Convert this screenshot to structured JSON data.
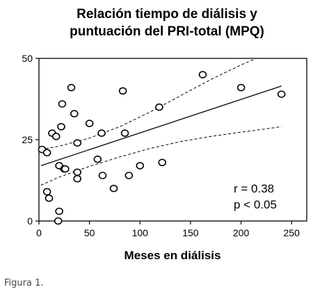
{
  "chart_data": {
    "type": "scatter",
    "title_lines": [
      "Relación tiempo de diálisis y",
      "puntuación del PRI-total (MPQ)"
    ],
    "xlabel": "Meses en diálisis",
    "ylabel": "",
    "xlim": [
      0,
      265
    ],
    "ylim": [
      0,
      50
    ],
    "x_ticks": [
      0,
      50,
      100,
      150,
      200,
      250
    ],
    "y_ticks": [
      0,
      25,
      50
    ],
    "grid": false,
    "points": [
      {
        "x": 3,
        "y": 22
      },
      {
        "x": 8,
        "y": 21
      },
      {
        "x": 8,
        "y": 9
      },
      {
        "x": 10,
        "y": 7
      },
      {
        "x": 13,
        "y": 27
      },
      {
        "x": 17,
        "y": 26
      },
      {
        "x": 20,
        "y": 17
      },
      {
        "x": 19,
        "y": 0
      },
      {
        "x": 20,
        "y": 3
      },
      {
        "x": 22,
        "y": 29
      },
      {
        "x": 23,
        "y": 36
      },
      {
        "x": 25,
        "y": 16
      },
      {
        "x": 26,
        "y": 16
      },
      {
        "x": 32,
        "y": 41
      },
      {
        "x": 35,
        "y": 33
      },
      {
        "x": 38,
        "y": 24
      },
      {
        "x": 38,
        "y": 15
      },
      {
        "x": 38,
        "y": 13
      },
      {
        "x": 50,
        "y": 30
      },
      {
        "x": 58,
        "y": 19
      },
      {
        "x": 62,
        "y": 27
      },
      {
        "x": 63,
        "y": 14
      },
      {
        "x": 74,
        "y": 10
      },
      {
        "x": 83,
        "y": 40
      },
      {
        "x": 85,
        "y": 27
      },
      {
        "x": 89,
        "y": 14
      },
      {
        "x": 100,
        "y": 17
      },
      {
        "x": 119,
        "y": 35
      },
      {
        "x": 122,
        "y": 18
      },
      {
        "x": 162,
        "y": 45
      },
      {
        "x": 200,
        "y": 41
      },
      {
        "x": 240,
        "y": 39
      }
    ],
    "fit_line": {
      "x": [
        2,
        240
      ],
      "y": [
        17,
        41.5
      ]
    },
    "ci_upper": {
      "x": [
        2,
        20,
        50,
        80,
        110,
        140,
        170,
        200,
        215
      ],
      "y": [
        22,
        23,
        25.5,
        29,
        33.5,
        38.5,
        43.5,
        48,
        50
      ]
    },
    "ci_lower": {
      "x": [
        2,
        20,
        50,
        80,
        110,
        140,
        170,
        200,
        240
      ],
      "y": [
        11,
        13.5,
        16.8,
        19.7,
        22.3,
        24.4,
        26,
        27.3,
        29
      ]
    },
    "annotations": [
      "r = 0.38",
      "p < 0.05"
    ]
  },
  "caption": "Figura 1."
}
